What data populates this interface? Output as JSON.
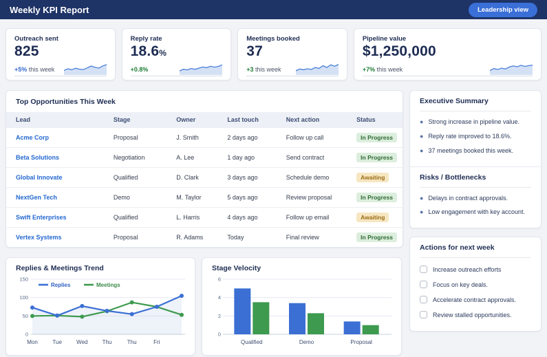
{
  "header": {
    "title": "Weekly KPI Report",
    "button_label": "Leadership view"
  },
  "colors": {
    "header_bg": "#1e3366",
    "accent_blue": "#3a6fd8",
    "green": "#1e7d34",
    "badge_inprogress_bg": "#dceedd",
    "badge_inprogress_text": "#2f6b33",
    "badge_awaiting_bg": "#f6e7c2",
    "badge_awaiting_text": "#9a6b14"
  },
  "kpis": [
    {
      "label": "Outreach sent",
      "value": "825",
      "value_suffix": "",
      "delta": "+5%",
      "delta_suffix": "this week",
      "delta_color": "#3569cf",
      "spark": [
        3.5,
        5,
        4.2,
        5.5,
        4.6,
        4.3,
        5.8,
        7.5,
        6.3,
        5.6,
        7.6,
        8.8
      ]
    },
    {
      "label": "Reply rate",
      "value": "18.6",
      "value_suffix": "%",
      "delta": "+0.8%",
      "delta_suffix": "",
      "delta_color": "#1e7d34",
      "spark": [
        3,
        4.6,
        4,
        5.3,
        4.5,
        5.6,
        6.6,
        6,
        7.3,
        6.5,
        7.2,
        8.6
      ]
    },
    {
      "label": "Meetings booked",
      "value": "37",
      "value_suffix": "",
      "delta": "+3",
      "delta_suffix": "this week",
      "delta_color": "#1e7d34",
      "spark": [
        3.2,
        4.8,
        4.1,
        5,
        4.4,
        6.2,
        5.4,
        7.8,
        6.2,
        8.6,
        7.4,
        9
      ]
    },
    {
      "label": "Pipeline value",
      "value": "$1,250,000",
      "value_suffix": "",
      "delta": "+7%",
      "delta_suffix": "this week",
      "delta_color": "#1e7d34",
      "spark": [
        3.4,
        5.2,
        4.4,
        5.6,
        4.8,
        6.6,
        7.6,
        6.8,
        8.2,
        7.2,
        7.8,
        8.4
      ]
    }
  ],
  "opportunities": {
    "title": "Top Opportunities This Week",
    "columns": [
      "Lead",
      "Stage",
      "Owner",
      "Last touch",
      "Next action",
      "Status"
    ],
    "rows": [
      {
        "lead": "Acme Corp",
        "stage": "Proposal",
        "owner": "J. Smith",
        "last_touch": "2 days ago",
        "next_action": "Follow up call",
        "status": "In Progress"
      },
      {
        "lead": "Beta Solutions",
        "stage": "Negotiation",
        "owner": "A. Lee",
        "last_touch": "1 day ago",
        "next_action": "Send contract",
        "status": "In Progress"
      },
      {
        "lead": "Global Innovate",
        "stage": "Qualified",
        "owner": "D. Clark",
        "last_touch": "3 days ago",
        "next_action": "Schedule demo",
        "status": "Awaiting"
      },
      {
        "lead": "NextGen Tech",
        "stage": "Demo",
        "owner": "M. Taylor",
        "last_touch": "5 days ago",
        "next_action": "Review proposal",
        "status": "In Progress"
      },
      {
        "lead": "Swift Enterprises",
        "stage": "Qualified",
        "owner": "L. Harris",
        "last_touch": "4 days ago",
        "next_action": "Follow up email",
        "status": "Awaiting"
      },
      {
        "lead": "Vertex Systems",
        "stage": "Proposal",
        "owner": "R. Adams",
        "last_touch": "Today",
        "next_action": "Final review",
        "status": "In Progress"
      }
    ],
    "status_styles": {
      "In Progress": {
        "bg": "#dceedd",
        "text": "#2f6b33"
      },
      "Awaiting": {
        "bg": "#f6e7c2",
        "text": "#9a6b14"
      }
    }
  },
  "sidebar": {
    "executive_summary": {
      "title": "Executive Summary",
      "items": [
        "Strong increase in pipeline value.",
        "Reply rate improved to 18.6%.",
        "37 meetings booked this week."
      ]
    },
    "risks": {
      "title": "Risks / Bottlenecks",
      "items": [
        "Delays in contract approvals.",
        "Low engagement with key account."
      ]
    },
    "actions": {
      "title": "Actions for next week",
      "items": [
        "Increase outreach efforts",
        "Focus on key deals.",
        "Accelerate contract approvals.",
        "Review stalled opportunities."
      ],
      "checked": [
        false,
        false,
        false,
        false
      ]
    }
  },
  "chart_data": [
    {
      "type": "line",
      "title": "Replies & Meetings Trend",
      "x_labels": [
        "Mon",
        "Tue",
        "Wed",
        "Thu",
        "Thu",
        "Fri",
        ""
      ],
      "series": [
        {
          "name": "Replies",
          "color": "#3b6fd4",
          "values": [
            73,
            51,
            77,
            64,
            55,
            75,
            105
          ]
        },
        {
          "name": "Meetings",
          "color": "#3d9a4e",
          "values": [
            50,
            51,
            48,
            63,
            87,
            75,
            53
          ]
        }
      ],
      "ylim": [
        0,
        150
      ],
      "yticks": [
        0,
        50,
        100,
        150
      ],
      "legend_position": "top-left",
      "grid": true,
      "area_fill_under": "Replies"
    },
    {
      "type": "bar",
      "title": "Stage Velocity",
      "categories": [
        "Qualified",
        "Demo",
        "Proposal"
      ],
      "series": [
        {
          "name": "blue-series",
          "color": "#3b6fd4",
          "values": [
            5.0,
            3.4,
            1.4
          ]
        },
        {
          "name": "green-series",
          "color": "#3d9a4e",
          "values": [
            3.5,
            2.3,
            1.0
          ]
        }
      ],
      "ylim": [
        0,
        6
      ],
      "yticks": [
        0,
        2,
        4,
        6
      ],
      "grid": true,
      "legend": false
    }
  ]
}
